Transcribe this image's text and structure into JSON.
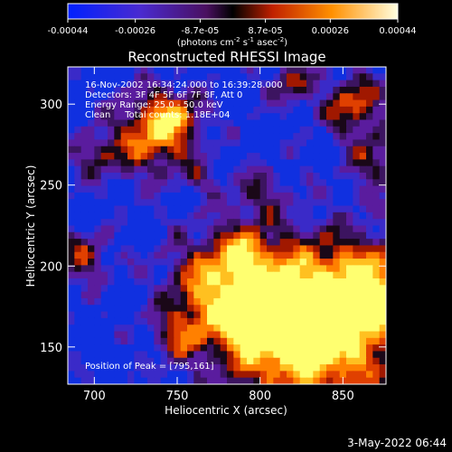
{
  "chart_data": {
    "type": "heatmap",
    "title": "Reconstructed RHESSI Image",
    "xlabel": "Heliocentric X (arcsec)",
    "ylabel": "Heliocentric Y (arcsec)",
    "xlim": [
      684,
      876
    ],
    "ylim": [
      127,
      323
    ],
    "x_ticks": [
      700,
      750,
      800,
      850
    ],
    "y_ticks": [
      150,
      200,
      250,
      300
    ],
    "grid": false,
    "colorbar": {
      "position": "top",
      "range": [
        -0.00044,
        0.00044
      ],
      "ticks": [
        "-0.00044",
        "-0.00026",
        "-8.7e-05",
        "8.7e-05",
        "0.00026",
        "0.00044"
      ],
      "tick_values": [
        -0.00044,
        -0.00026,
        -8.7e-05,
        8.7e-05,
        0.00026,
        0.00044
      ],
      "units": {
        "prefix": "(photons cm",
        "exp1": "-2",
        "mid1": " s",
        "exp2": "-1",
        "mid2": " asec",
        "exp3": "-2",
        "suffix": ")"
      }
    },
    "annotations": [
      "16-Nov-2002 16:34:24.000 to 16:39:28.000",
      "Detectors: 3F 4F 5F 6F 7F 8F, Att 0",
      "Energy Range: 25.0 - 50.0 keV",
      "Clean     Total counts: 1.18E+04"
    ],
    "peak_label": "Position of Peak = [795,161]",
    "peak": [
      795,
      161
    ],
    "colors": {
      "low": "#0000ff",
      "mid": "#6a0a9a",
      "high": "#ffff40"
    }
  },
  "footer": {
    "timestamp": "3-May-2022 06:44"
  }
}
